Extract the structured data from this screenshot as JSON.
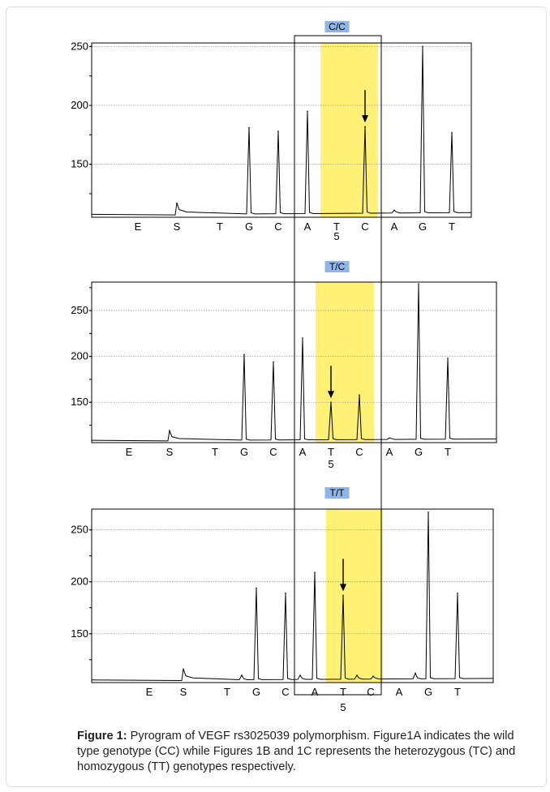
{
  "caption": {
    "label": "Figure 1:",
    "text": " Pyrogram of VEGF rs3025039 polymorphism. Figure1A indicates the wild type genotype (CC) while Figures 1B and 1C represents the heterozygous (TC) and homozygous (TT) genotypes respectively."
  },
  "colors": {
    "highlight": "#fff176",
    "label_bg": "#8fb6ea",
    "trace": "#000000",
    "grid": "#9a9a9a",
    "card_border": "#dddddd"
  },
  "chart_data": [
    {
      "type": "line",
      "label": "C/C",
      "yticks": [
        150,
        200,
        250
      ],
      "ylim": [
        105,
        253
      ],
      "baseline_left": 107,
      "baseline_right": 109,
      "dispensation": [
        "E",
        "S",
        "T",
        "G",
        "C",
        "A",
        "T",
        "C",
        "A",
        "G",
        "T"
      ],
      "position_label": "5",
      "position_index": 6,
      "highlight_dispensations": [
        "T",
        "C"
      ],
      "arrow_dispensation": "C",
      "peaks": [
        {
          "dispensation": "S",
          "height": 117
        },
        {
          "dispensation": "G",
          "height": 181
        },
        {
          "dispensation": "C",
          "height": 178
        },
        {
          "dispensation": "A",
          "height": 195
        },
        {
          "dispensation": "C",
          "height": 182
        },
        {
          "dispensation": "A",
          "height": 111
        },
        {
          "dispensation": "G",
          "height": 250
        },
        {
          "dispensation": "T",
          "height": 177
        }
      ]
    },
    {
      "type": "line",
      "label": "T/C",
      "yticks": [
        150,
        200,
        250
      ],
      "ylim": [
        106,
        281
      ],
      "baseline_left": 108,
      "baseline_right": 110,
      "dispensation": [
        "E",
        "S",
        "T",
        "G",
        "C",
        "A",
        "T",
        "C",
        "A",
        "G",
        "T"
      ],
      "position_label": "5",
      "position_index": 6,
      "highlight_dispensations": [
        "T",
        "C"
      ],
      "arrow_dispensation": "T",
      "peaks": [
        {
          "dispensation": "S",
          "height": 119
        },
        {
          "dispensation": "G",
          "height": 202
        },
        {
          "dispensation": "C",
          "height": 194
        },
        {
          "dispensation": "A",
          "height": 220
        },
        {
          "dispensation": "T",
          "height": 150
        },
        {
          "dispensation": "C",
          "height": 158
        },
        {
          "dispensation": "A",
          "height": 111
        },
        {
          "dispensation": "G",
          "height": 279
        },
        {
          "dispensation": "T",
          "height": 198
        }
      ]
    },
    {
      "type": "line",
      "label": "T/T",
      "yticks": [
        150,
        200,
        250
      ],
      "ylim": [
        103,
        270
      ],
      "baseline_left": 105,
      "baseline_right": 107,
      "dispensation": [
        "E",
        "S",
        "T",
        "G",
        "C",
        "A",
        "T",
        "C",
        "A",
        "G",
        "T"
      ],
      "position_label": "5",
      "position_index": 6,
      "highlight_dispensations": [
        "T"
      ],
      "arrow_dispensation": "T",
      "peaks": [
        {
          "dispensation": "S",
          "height": 116
        },
        {
          "dispensation": "T",
          "height": 110
        },
        {
          "dispensation": "G",
          "height": 194
        },
        {
          "dispensation": "C",
          "height": 189
        },
        {
          "dispensation": "A",
          "height": 110
        },
        {
          "dispensation": "A",
          "height": 209
        },
        {
          "dispensation": "T",
          "height": 187
        },
        {
          "dispensation": "C",
          "height": 110
        },
        {
          "dispensation": "A",
          "height": 109
        },
        {
          "dispensation": "A",
          "height": 112
        },
        {
          "dispensation": "G",
          "height": 267
        },
        {
          "dispensation": "T",
          "height": 189
        }
      ]
    }
  ]
}
